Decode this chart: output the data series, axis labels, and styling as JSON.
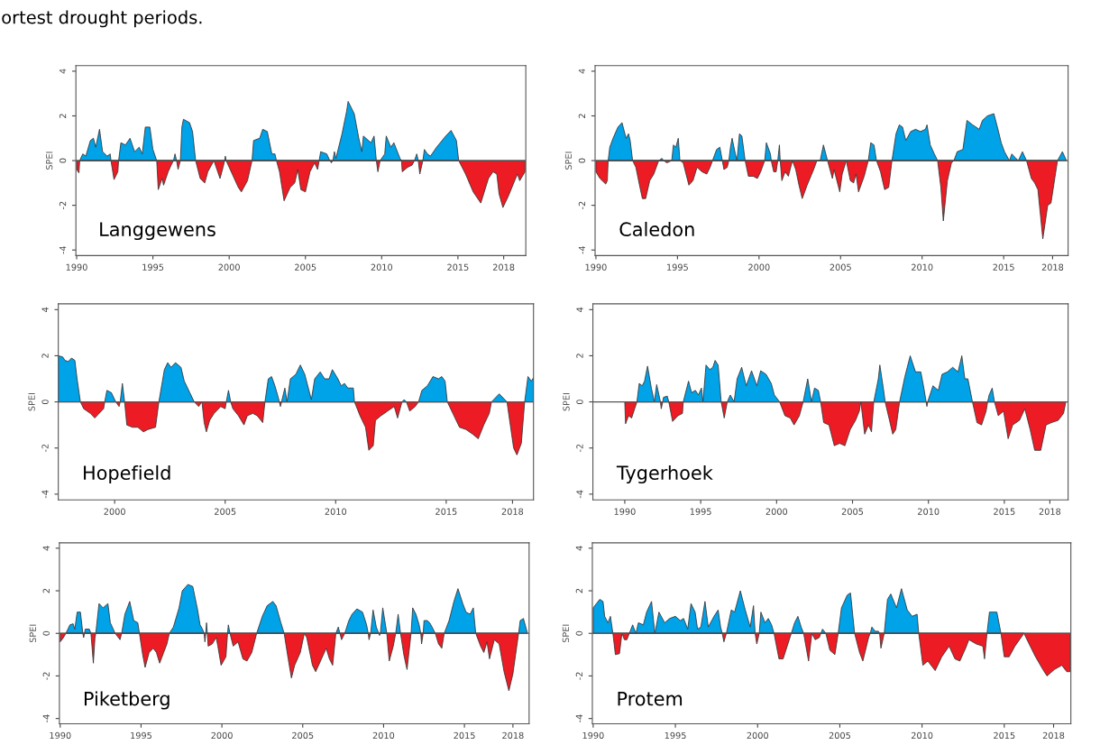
{
  "chart_data": [
    {
      "type": "area",
      "ylabel": "SPEI",
      "annotations": [
        "Langgewens",
        "ortest drought periods."
      ],
      "xlim": [
        1989.95,
        2019.45
      ],
      "xticks": [
        1990,
        1995,
        2000,
        2005,
        2010,
        2015,
        2018
      ],
      "ylim": [
        -4.25,
        4.25
      ],
      "yticks": [
        -4,
        -2,
        0,
        2,
        4
      ],
      "ref_lines": [
        {
          "axis": "y",
          "value": 0,
          "color": "#555555"
        }
      ],
      "series": [
        {
          "color": "#00a2e8",
          "x": [
            1990.2,
            1990.4,
            1990.6,
            1990.9,
            1991.1,
            1991.25,
            1991.5,
            1991.7,
            1992.0,
            1992.2,
            1992.25,
            1992.75,
            1992.9,
            1993.2,
            1993.5,
            1993.8,
            1994.1,
            1994.3,
            1994.5,
            1994.8,
            1995.0,
            1995.25,
            1996.35,
            1996.45,
            1996.55,
            1996.8,
            1996.9,
            1997.0,
            1997.4,
            1997.6,
            1997.8,
            1999.0,
            1999.7,
            1999.75,
            1999.8,
            2001.5,
            2001.6,
            2002.0,
            2002.2,
            2002.5,
            2002.8,
            2003.0,
            2003.1,
            2005.9,
            2006.0,
            2006.4,
            2006.6,
            2006.8,
            2006.9,
            2007.0,
            2007.4,
            2007.7,
            2007.8,
            2008.2,
            2008.5,
            2008.7,
            2008.8,
            2009.3,
            2009.5,
            2009.65,
            2009.9,
            2010.2,
            2010.3,
            2010.6,
            2010.8,
            2011.2,
            2011.3,
            2012.15,
            2012.3,
            2012.4,
            2012.7,
            2012.8,
            2013.0,
            2013.2,
            2013.6,
            2014.2,
            2014.55,
            2014.9,
            2015.05
          ],
          "values": [
            0,
            0.3,
            0.2,
            0.9,
            1.0,
            0.6,
            1.4,
            0.4,
            0.2,
            0.3,
            0,
            0,
            0.8,
            0.7,
            1.0,
            0.4,
            0.6,
            0.3,
            1.5,
            1.5,
            0.5,
            0,
            0,
            0.3,
            0,
            0,
            1.5,
            1.85,
            1.7,
            1.3,
            0,
            0,
            0,
            0.2,
            0,
            0,
            0.9,
            1.0,
            1.4,
            1.3,
            0.3,
            0.3,
            0,
            0,
            0.4,
            0.3,
            0,
            0,
            0.4,
            0.1,
            1.2,
            2.2,
            2.65,
            2.1,
            1.0,
            0.4,
            1.1,
            0.8,
            1.1,
            0,
            0,
            0.3,
            1.1,
            0.6,
            0.8,
            0.1,
            0,
            0,
            0.3,
            0,
            0,
            0.5,
            0.3,
            0.2,
            0.6,
            1.1,
            1.35,
            0.9,
            0
          ]
        },
        {
          "color": "#ed1c24",
          "x": [
            1990.0,
            1990.15,
            1990.2,
            1992.25,
            1992.45,
            1992.7,
            1992.75,
            1995.25,
            1995.35,
            1995.6,
            1995.7,
            1996.0,
            1996.2,
            1996.35,
            1996.55,
            1996.65,
            1996.8,
            1997.8,
            1998.1,
            1998.4,
            1998.6,
            1999.0,
            1999.4,
            1999.6,
            1999.7,
            1999.8,
            2000.2,
            2000.6,
            2000.8,
            2001.2,
            2001.5,
            2003.1,
            2003.3,
            2003.6,
            2004.0,
            2004.3,
            2004.5,
            2004.7,
            2005.0,
            2005.3,
            2005.6,
            2005.8,
            2005.9,
            2006.6,
            2006.7,
            2006.8,
            2009.65,
            2009.75,
            2009.9,
            2011.3,
            2011.35,
            2011.7,
            2012.0,
            2012.15,
            2012.4,
            2012.5,
            2012.7,
            2015.05,
            2015.5,
            2016.0,
            2016.5,
            2017.0,
            2017.3,
            2017.55,
            2017.7,
            2017.95,
            2018.3,
            2018.9,
            2019.05,
            2019.4
          ],
          "values": [
            -0.4,
            -0.55,
            0,
            0,
            -0.85,
            -0.5,
            0,
            0,
            -1.3,
            -0.8,
            -1.1,
            -0.5,
            -0.2,
            0,
            0,
            -0.4,
            0,
            0,
            -0.8,
            -1.0,
            -0.5,
            0,
            -0.8,
            -0.3,
            0,
            0,
            -0.6,
            -1.2,
            -1.4,
            -0.9,
            0,
            0,
            -0.5,
            -1.8,
            -1.2,
            -1.0,
            -0.4,
            -1.3,
            -1.4,
            -0.5,
            -0.1,
            -0.4,
            0,
            0,
            -0.1,
            0,
            0,
            -0.5,
            0,
            0,
            -0.5,
            -0.3,
            -0.2,
            0,
            0,
            -0.6,
            0,
            0,
            -0.6,
            -1.4,
            -1.9,
            -0.8,
            -0.5,
            -0.6,
            -1.5,
            -2.1,
            -1.6,
            -0.6,
            -0.9,
            -0.5
          ]
        }
      ]
    },
    {
      "type": "area",
      "ylabel": "SPEI",
      "annotations": [
        "Caledon"
      ],
      "xlim": [
        1989.95,
        2018.95
      ],
      "xticks": [
        1990,
        1995,
        2000,
        2005,
        2010,
        2015,
        2018
      ],
      "ylim": [
        -4.25,
        4.25
      ],
      "yticks": [
        -4,
        -2,
        0,
        2,
        4
      ],
      "ref_lines": [
        {
          "axis": "y",
          "value": 0,
          "color": "#555555"
        }
      ],
      "series": [
        {
          "color": "#00a2e8",
          "x": [
            1990.75,
            1990.85,
            1991.05,
            1991.35,
            1991.6,
            1991.85,
            1992.0,
            1992.1,
            1992.25,
            1993.85,
            1994.05,
            1994.15,
            1994.65,
            1994.75,
            1994.9,
            1995.05,
            1995.15,
            1997.15,
            1997.4,
            1997.6,
            1997.75,
            1998.15,
            1998.25,
            1998.35,
            1998.55,
            1998.65,
            1998.8,
            1998.95,
            1999.15,
            2000.35,
            2000.45,
            2000.7,
            2000.75,
            2001.15,
            2001.25,
            2001.3,
            2003.75,
            2003.95,
            2004.2,
            2006.7,
            2006.85,
            2007.05,
            2007.2,
            2008.15,
            2008.4,
            2008.6,
            2008.8,
            2009.0,
            2009.3,
            2009.6,
            2009.9,
            2010.2,
            2010.3,
            2010.5,
            2010.75,
            2010.95,
            2011.95,
            2012.15,
            2012.5,
            2012.75,
            2013.1,
            2013.5,
            2013.7,
            2014.0,
            2014.4,
            2014.65,
            2014.85,
            2015.05,
            2015.35,
            2015.5,
            2015.75,
            2015.9,
            2016.15,
            2016.4,
            2018.3,
            2018.6,
            2018.85
          ],
          "values": [
            0,
            0.6,
            1.0,
            1.5,
            1.7,
            1.0,
            1.2,
            0.9,
            0,
            0,
            0.1,
            0,
            0,
            0.7,
            0.6,
            1.0,
            0,
            0,
            0.5,
            0.6,
            0,
            0,
            0.6,
            1.0,
            0.3,
            0,
            1.2,
            1.1,
            0,
            0,
            0.8,
            0.3,
            0,
            0,
            0.7,
            0,
            0,
            0.7,
            0,
            0,
            0.8,
            0.7,
            0,
            0,
            1.2,
            1.6,
            1.5,
            0.9,
            1.3,
            1.4,
            1.3,
            1.4,
            1.6,
            0.7,
            0.3,
            0,
            0,
            0.4,
            0.5,
            1.8,
            1.6,
            1.4,
            1.8,
            2.0,
            2.1,
            1.4,
            0.8,
            0.4,
            0,
            0.3,
            0.1,
            0,
            0.4,
            0,
            0,
            0.4,
            0
          ]
        },
        {
          "color": "#ed1c24",
          "x": [
            1990.0,
            1990.25,
            1990.6,
            1990.7,
            1990.75,
            1992.25,
            1992.45,
            1992.7,
            1992.85,
            1993.05,
            1993.3,
            1993.55,
            1993.75,
            1993.85,
            1994.15,
            1994.35,
            1994.65,
            1995.15,
            1995.35,
            1995.7,
            1995.95,
            1996.2,
            1996.5,
            1996.8,
            1997.0,
            1997.15,
            1997.75,
            1997.85,
            1998.05,
            1998.15,
            1999.15,
            1999.35,
            1999.65,
            1999.9,
            2000.1,
            2000.35,
            2000.75,
            2000.9,
            2001.05,
            2001.15,
            2001.3,
            2001.4,
            2001.6,
            2001.8,
            2002.05,
            2002.25,
            2002.45,
            2002.65,
            2002.95,
            2003.35,
            2003.55,
            2004.2,
            2004.5,
            2004.6,
            2004.95,
            2005.1,
            2005.35,
            2005.6,
            2005.8,
            2005.95,
            2006.1,
            2006.45,
            2006.7,
            2007.2,
            2007.45,
            2007.7,
            2007.95,
            2008.15,
            2010.95,
            2011.15,
            2011.3,
            2011.55,
            2011.8,
            2011.95,
            2016.4,
            2016.7,
            2016.9,
            2017.1,
            2017.4,
            2017.7,
            2017.9,
            2018.3
          ],
          "values": [
            -0.5,
            -0.8,
            -1.05,
            -0.9,
            0,
            0,
            -0.3,
            -1.2,
            -1.7,
            -1.7,
            -0.9,
            -0.6,
            -0.2,
            0,
            0,
            -0.1,
            0,
            0,
            -0.1,
            -1.1,
            -0.9,
            -0.3,
            -0.5,
            -0.6,
            -0.3,
            0,
            0,
            -0.4,
            -0.3,
            0,
            0,
            -0.7,
            -0.7,
            -0.8,
            -0.5,
            0,
            0,
            -0.5,
            -0.5,
            0,
            0,
            -0.9,
            -0.5,
            -0.7,
            0,
            -0.4,
            -1.1,
            -1.7,
            -1.1,
            -0.4,
            0,
            0,
            -0.8,
            -0.4,
            -1.4,
            -0.6,
            0,
            -0.9,
            -1.0,
            -0.6,
            -1.4,
            -0.7,
            0,
            0,
            -0.5,
            -1.3,
            -1.2,
            0,
            0,
            -1.2,
            -2.7,
            -0.9,
            -0.1,
            0,
            0,
            -0.8,
            -1.0,
            -1.3,
            -3.5,
            -2.0,
            -1.9,
            0
          ]
        }
      ]
    },
    {
      "type": "area",
      "ylabel": "SPEI",
      "annotations": [
        "Hopefield"
      ],
      "xlim": [
        1997.45,
        2018.95
      ],
      "xticks": [
        2000,
        2005,
        2010,
        2015,
        2018
      ],
      "ylim": [
        -4.25,
        4.25
      ],
      "yticks": [
        -4,
        -2,
        0,
        2,
        4
      ],
      "ref_lines": [
        {
          "axis": "y",
          "value": 0,
          "color": "#555555"
        }
      ],
      "series": [
        {
          "color": "#00a2e8",
          "x": [
            1997.45,
            1997.65,
            1997.75,
            1997.9,
            1998.05,
            1998.2,
            1998.3,
            1998.45,
            1999.55,
            1999.65,
            1999.85,
            2000.05,
            2000.25,
            2000.35,
            2000.45,
            2002.0,
            2002.25,
            2002.4,
            2002.55,
            2002.75,
            2003.0,
            2003.15,
            2003.4,
            2003.6,
            2003.95,
            2005.05,
            2005.15,
            2005.25,
            2006.8,
            2006.95,
            2007.1,
            2007.25,
            2007.4,
            2007.45,
            2007.55,
            2007.7,
            2007.8,
            2007.95,
            2008.2,
            2008.4,
            2008.6,
            2008.9,
            2009.05,
            2009.3,
            2009.5,
            2009.7,
            2009.85,
            2010.1,
            2010.25,
            2010.4,
            2010.55,
            2010.8,
            2010.85,
            2013.0,
            2013.1,
            2013.2,
            2013.75,
            2013.9,
            2014.15,
            2014.4,
            2014.65,
            2014.8,
            2014.95,
            2015.05,
            2017.05,
            2017.15,
            2017.4,
            2017.65,
            2017.75,
            2018.55,
            2018.7,
            2018.85,
            2018.95
          ],
          "values": [
            2.0,
            1.95,
            1.8,
            1.75,
            1.9,
            1.8,
            1.0,
            0,
            0,
            0.5,
            0.4,
            0,
            0,
            0.8,
            0,
            0,
            1.4,
            1.7,
            1.5,
            1.7,
            1.5,
            0.9,
            0.4,
            0,
            0,
            0,
            0.5,
            0,
            0,
            1.0,
            1.1,
            0.7,
            0.2,
            0,
            0,
            0.6,
            0,
            1.0,
            1.2,
            1.6,
            1.2,
            0.1,
            1.0,
            1.3,
            1.0,
            1.0,
            1.4,
            1.0,
            0.7,
            0.8,
            0.6,
            0.6,
            0,
            0,
            0.1,
            0,
            0,
            0.5,
            0.7,
            1.1,
            1.0,
            1.1,
            0.9,
            0,
            0,
            0.1,
            0.35,
            0.1,
            0,
            0,
            1.1,
            0.9,
            1.05
          ]
        },
        {
          "color": "#ed1c24",
          "x": [
            1998.45,
            1998.6,
            1998.9,
            1999.1,
            1999.3,
            1999.5,
            1999.55,
            2000.05,
            2000.2,
            2000.25,
            2000.45,
            2000.55,
            2000.8,
            2001.05,
            2001.3,
            2001.5,
            2001.85,
            2002.0,
            2003.6,
            2003.8,
            2003.95,
            2004.05,
            2004.15,
            2004.3,
            2004.5,
            2004.8,
            2005.0,
            2005.05,
            2005.25,
            2005.35,
            2005.6,
            2005.85,
            2006.0,
            2006.25,
            2006.45,
            2006.7,
            2006.8,
            2007.45,
            2007.5,
            2007.55,
            2010.85,
            2011.1,
            2011.35,
            2011.5,
            2011.7,
            2011.8,
            2012.05,
            2012.35,
            2012.65,
            2012.8,
            2013.0,
            2013.2,
            2013.35,
            2013.6,
            2013.75,
            2015.05,
            2015.3,
            2015.6,
            2015.9,
            2016.2,
            2016.45,
            2016.7,
            2016.95,
            2017.05,
            2017.75,
            2017.9,
            2018.05,
            2018.2,
            2018.4,
            2018.55
          ],
          "values": [
            0,
            -0.3,
            -0.5,
            -0.7,
            -0.5,
            -0.3,
            0,
            0,
            -0.2,
            0,
            0,
            -1.0,
            -1.1,
            -1.1,
            -1.3,
            -1.2,
            -1.1,
            0,
            0,
            -0.2,
            0,
            -0.9,
            -1.3,
            -0.8,
            -0.5,
            -0.2,
            -0.3,
            0,
            0,
            -0.3,
            -0.6,
            -1.0,
            -0.6,
            -0.5,
            -0.6,
            -0.9,
            0,
            0,
            -0.2,
            0,
            0,
            -0.6,
            -1.1,
            -2.1,
            -1.9,
            -0.8,
            -0.6,
            -0.4,
            -0.2,
            -0.7,
            0,
            0,
            -0.4,
            -0.2,
            0,
            0,
            -0.5,
            -1.1,
            -1.2,
            -1.4,
            -1.6,
            -1.0,
            -0.5,
            0,
            0,
            -1.0,
            -2.0,
            -2.3,
            -1.8,
            0
          ]
        }
      ]
    },
    {
      "type": "area",
      "ylabel": "SPEI",
      "annotations": [
        "Tygerhoek"
      ],
      "xlim": [
        1987.9,
        2019.2
      ],
      "xticks": [
        1990,
        1995,
        2000,
        2005,
        2010,
        2015,
        2018
      ],
      "ylim": [
        -4.25,
        4.25
      ],
      "yticks": [
        -4,
        -2,
        0,
        2,
        4
      ],
      "ref_lines": [
        {
          "axis": "y",
          "value": 0,
          "color": "#555555"
        }
      ],
      "series": [
        {
          "color": "#00a2e8",
          "x": [
            1990.0,
            1990.8,
            1990.95,
            1991.15,
            1991.3,
            1991.5,
            1991.75,
            1991.95,
            1992.1,
            1992.25,
            1992.35,
            1992.5,
            1992.55,
            1992.8,
            1992.9,
            1993.85,
            1994.2,
            1994.4,
            1994.65,
            1994.85,
            1995.05,
            1995.15,
            1995.35,
            1995.6,
            1995.8,
            1995.95,
            1996.15,
            1996.35,
            1996.75,
            1996.95,
            1997.2,
            1997.4,
            1997.7,
            1998.0,
            1998.35,
            1998.7,
            1998.95,
            1999.3,
            1999.65,
            1999.85,
            2000.2,
            2001.75,
            2002.05,
            2002.3,
            2002.5,
            2002.75,
            2002.9,
            2005.55,
            2006.4,
            2006.7,
            2006.8,
            2007.05,
            2007.15,
            2008.1,
            2008.45,
            2008.8,
            2009.15,
            2009.5,
            2009.7,
            2009.85,
            2009.95,
            2010.3,
            2010.65,
            2010.9,
            2011.25,
            2011.6,
            2011.95,
            2012.2,
            2012.4,
            2012.6,
            2012.9,
            2013.9,
            2014.0,
            2014.2,
            2014.35,
            2019.05
          ],
          "values": [
            0,
            0,
            0.8,
            0.7,
            0.9,
            1.55,
            0.6,
            0,
            0.75,
            0.3,
            0,
            0,
            0.2,
            0.25,
            0,
            0,
            0.9,
            0.4,
            0.5,
            0.3,
            0.6,
            0,
            1.6,
            1.4,
            1.5,
            1.8,
            1.6,
            0,
            0,
            0.3,
            0,
            1.0,
            1.5,
            0.7,
            1.35,
            0.7,
            1.35,
            1.2,
            0.8,
            0.3,
            0,
            0,
            1.0,
            0,
            0.6,
            0.5,
            0,
            0,
            0,
            1.0,
            1.6,
            0.5,
            0,
            0,
            1.1,
            2.0,
            1.3,
            1.3,
            0.6,
            0,
            0,
            0.7,
            0.5,
            1.2,
            1.3,
            1.5,
            1.3,
            2.0,
            1.0,
            1.0,
            0,
            0,
            0.3,
            0.6,
            0,
            0
          ]
        },
        {
          "color": "#ed1c24",
          "x": [
            1990.0,
            1990.05,
            1990.25,
            1990.45,
            1990.65,
            1990.8,
            1992.35,
            1992.4,
            1992.5,
            1992.9,
            1993.15,
            1993.5,
            1993.8,
            1993.85,
            1996.35,
            1996.55,
            1996.75,
            2000.2,
            2000.55,
            2000.9,
            2001.15,
            2001.5,
            2001.75,
            2002.9,
            2003.1,
            2003.45,
            2003.8,
            2004.15,
            2004.5,
            2004.85,
            2005.2,
            2005.45,
            2005.55,
            2005.8,
            2006.05,
            2006.25,
            2006.4,
            2007.15,
            2007.4,
            2007.65,
            2007.85,
            2008.1,
            2009.85,
            2009.9,
            2009.95,
            2012.9,
            2013.2,
            2013.5,
            2013.8,
            2013.9,
            2014.35,
            2014.6,
            2014.95,
            2015.25,
            2015.55,
            2016.0,
            2016.35,
            2016.7,
            2017.0,
            2017.4,
            2017.75,
            2018.1,
            2018.55,
            2018.9,
            2019.05
          ],
          "values": [
            0,
            -0.95,
            -0.6,
            -0.7,
            -0.3,
            0,
            0,
            -0.3,
            0,
            0,
            -0.85,
            -0.6,
            -0.5,
            0,
            0,
            -0.7,
            0,
            0,
            -0.6,
            -0.7,
            -1.0,
            -0.6,
            0,
            0,
            -0.9,
            -1.0,
            -1.9,
            -1.8,
            -1.9,
            -1.2,
            -0.8,
            -0.4,
            0,
            -1.4,
            -1.0,
            -1.3,
            0,
            0,
            -0.7,
            -1.4,
            -1.2,
            0,
            0,
            -0.2,
            0,
            0,
            -0.9,
            -1.0,
            -0.4,
            0,
            0,
            -0.6,
            -0.4,
            -1.6,
            -1.0,
            -0.8,
            -0.3,
            -1.2,
            -2.1,
            -2.1,
            -1.0,
            -0.9,
            -0.8,
            -0.5,
            0
          ]
        }
      ]
    },
    {
      "type": "area",
      "ylabel": "SPEI",
      "annotations": [
        "Piketberg"
      ],
      "xlim": [
        1989.95,
        2019.0
      ],
      "xticks": [
        1990,
        1995,
        2000,
        2005,
        2010,
        2015,
        2018
      ],
      "ylim": [
        -4.25,
        4.25
      ],
      "yticks": [
        -4,
        -2,
        0,
        2,
        4
      ],
      "ref_lines": [
        {
          "axis": "y",
          "value": 0,
          "color": "#555555"
        }
      ],
      "series": [
        {
          "color": "#00a2e8",
          "x": [
            1990.35,
            1990.6,
            1990.8,
            1990.9,
            1991.05,
            1991.25,
            1991.4,
            1991.5,
            1991.55,
            1991.8,
            1991.9,
            1992.2,
            1992.4,
            1992.65,
            1992.95,
            1993.1,
            1993.4,
            1993.8,
            1994.0,
            1994.3,
            1994.55,
            1994.8,
            1994.9,
            1996.75,
            1997.0,
            1997.35,
            1997.55,
            1997.9,
            1998.2,
            1998.5,
            1998.65,
            1998.8,
            1998.9,
            1999.0,
            1999.05,
            1999.1,
            2000.35,
            2000.4,
            2000.5,
            2002.15,
            2002.5,
            2002.8,
            2003.15,
            2003.35,
            2003.65,
            2003.85,
            2005.1,
            2007.05,
            2007.2,
            2007.3,
            2007.6,
            2007.85,
            2008.05,
            2008.35,
            2008.7,
            2008.95,
            2009.05,
            2009.2,
            2009.35,
            2009.55,
            2009.7,
            2009.8,
            2009.95,
            2010.2,
            2010.75,
            2010.9,
            2011.05,
            2011.7,
            2011.8,
            2012.0,
            2012.2,
            2012.3,
            2012.45,
            2012.5,
            2012.7,
            2012.85,
            2013.0,
            2013.2,
            2013.75,
            2014.05,
            2014.35,
            2014.6,
            2014.9,
            2015.1,
            2015.35,
            2015.55,
            2015.7,
            2018.35,
            2018.45,
            2018.65,
            2018.9
          ],
          "values": [
            0,
            0.4,
            0.45,
            0.2,
            1.0,
            1.0,
            0,
            0,
            0.2,
            0.2,
            0,
            0,
            1.4,
            1.2,
            1.4,
            0.5,
            0,
            0,
            0.9,
            1.5,
            0.6,
            0.5,
            0,
            0,
            0.3,
            1.2,
            2.0,
            2.3,
            2.2,
            1.1,
            0.4,
            0.2,
            0,
            0,
            0.5,
            0,
            0,
            0.4,
            0,
            0,
            0.8,
            1.3,
            1.5,
            1.3,
            0.5,
            0,
            0,
            0,
            0.3,
            0,
            0,
            0.6,
            0.9,
            1.15,
            1.0,
            0.4,
            0,
            0,
            1.1,
            0.3,
            0,
            0,
            1.2,
            0,
            0,
            0.9,
            0,
            0,
            1.2,
            0.9,
            0.4,
            0,
            0,
            0.6,
            0.6,
            0.5,
            0.3,
            0,
            0,
            0.6,
            1.5,
            2.1,
            1.4,
            1.0,
            0.9,
            1.2,
            0,
            0,
            0.6,
            0.7,
            0
          ]
        },
        {
          "color": "#ed1c24",
          "x": [
            1990.0,
            1990.2,
            1990.35,
            1991.4,
            1991.45,
            1991.5,
            1991.9,
            1992.05,
            1992.15,
            1992.2,
            1993.4,
            1993.7,
            1993.8,
            1994.9,
            1995.1,
            1995.25,
            1995.5,
            1995.75,
            1995.95,
            1996.15,
            1996.4,
            1996.6,
            1996.75,
            1998.9,
            1998.95,
            1999.0,
            1999.1,
            1999.15,
            1999.4,
            1999.65,
            1999.75,
            1999.95,
            2000.25,
            2000.35,
            2000.5,
            2000.7,
            2001.0,
            2001.3,
            2001.55,
            2001.85,
            2002.15,
            2003.85,
            2004.1,
            2004.3,
            2004.5,
            2004.85,
            2005.1,
            2005.25,
            2005.6,
            2005.8,
            2006.1,
            2006.45,
            2006.65,
            2006.85,
            2007.05,
            2007.3,
            2007.4,
            2007.6,
            2009.05,
            2009.1,
            2009.2,
            2009.7,
            2009.75,
            2009.8,
            2010.2,
            2010.35,
            2010.6,
            2010.75,
            2011.05,
            2011.25,
            2011.45,
            2011.7,
            2012.3,
            2012.35,
            2012.45,
            2013.2,
            2013.4,
            2013.6,
            2013.75,
            2015.7,
            2016.0,
            2016.2,
            2016.4,
            2016.55,
            2016.85,
            2017.15,
            2017.45,
            2017.75,
            2018.0,
            2018.35
          ],
          "values": [
            -0.4,
            -0.2,
            0,
            0,
            -0.2,
            0,
            0,
            -1.4,
            -0.2,
            0,
            0,
            -0.3,
            0,
            0,
            -1.0,
            -1.6,
            -0.9,
            -0.7,
            -0.9,
            -1.4,
            -0.9,
            -0.5,
            0,
            0,
            -0.4,
            0,
            0,
            -0.6,
            -0.5,
            -0.2,
            -0.6,
            -1.5,
            -1.1,
            0,
            0,
            -0.6,
            -0.4,
            -1.2,
            -1.3,
            -0.9,
            0,
            0,
            -1.2,
            -2.1,
            -1.5,
            -0.9,
            0,
            -0.2,
            -1.5,
            -1.8,
            -1.3,
            -0.7,
            -1.2,
            -1.5,
            0,
            0,
            -0.3,
            0,
            0,
            -0.3,
            0,
            0,
            -0.1,
            0,
            0,
            -1.3,
            -0.6,
            0,
            0,
            -1.0,
            -1.7,
            0,
            0,
            -0.5,
            0,
            0,
            -0.5,
            -0.7,
            0,
            0,
            -0.6,
            -0.9,
            -0.4,
            -1.2,
            -0.3,
            -0.5,
            -1.8,
            -2.7,
            -1.9,
            0
          ]
        }
      ]
    },
    {
      "type": "area",
      "ylabel": "SPEI",
      "annotations": [
        "Protem"
      ],
      "xlim": [
        1989.95,
        2019.05
      ],
      "xticks": [
        1990,
        1995,
        2000,
        2005,
        2010,
        2015,
        2018
      ],
      "ylim": [
        -4.25,
        4.25
      ],
      "yticks": [
        -4,
        -2,
        0,
        2,
        4
      ],
      "ref_lines": [
        {
          "axis": "y",
          "value": 0,
          "color": "#555555"
        }
      ],
      "series": [
        {
          "color": "#00a2e8",
          "x": [
            1990.0,
            1990.2,
            1990.4,
            1990.6,
            1990.7,
            1990.9,
            1991.05,
            1991.2,
            1991.75,
            1992.2,
            1992.4,
            1992.6,
            1992.75,
            1993.05,
            1993.25,
            1993.55,
            1993.75,
            1994.0,
            1994.35,
            1994.65,
            1995.0,
            1995.3,
            1995.5,
            1995.75,
            1995.95,
            1996.2,
            1996.35,
            1996.55,
            1996.8,
            1997.0,
            1997.35,
            1997.6,
            1997.75,
            1997.85,
            1998.1,
            1998.4,
            1998.6,
            1998.95,
            1999.25,
            1999.55,
            1999.75,
            1999.85,
            2000.1,
            2000.2,
            2000.45,
            2000.65,
            2000.85,
            2001.0,
            2002.05,
            2002.25,
            2002.45,
            2002.65,
            2002.8,
            2003.3,
            2003.85,
            2003.95,
            2004.15,
            2004.9,
            2005.1,
            2005.45,
            2005.65,
            2005.9,
            2006.85,
            2006.95,
            2007.15,
            2007.35,
            2007.42,
            2007.7,
            2007.9,
            2008.1,
            2008.45,
            2008.75,
            2009.1,
            2009.4,
            2009.7,
            2009.8,
            2013.95,
            2014.1,
            2014.55,
            2014.8,
            2016.2
          ],
          "values": [
            1.2,
            1.4,
            1.6,
            1.5,
            0.8,
            0.5,
            0.8,
            0,
            0,
            0,
            0.4,
            0,
            0.5,
            0.4,
            1.0,
            1.5,
            0,
            1.0,
            0.5,
            0.7,
            0.8,
            0.6,
            0.7,
            0.2,
            1.4,
            1.0,
            0.2,
            0.3,
            1.5,
            0.3,
            0.8,
            1.1,
            0.3,
            0,
            0,
            1.1,
            1.0,
            2.0,
            1.1,
            0.3,
            1.3,
            0,
            0,
            1.0,
            0.5,
            0.7,
            0.4,
            0,
            0,
            0.5,
            0.8,
            0.3,
            0,
            0,
            0,
            0.2,
            0,
            0,
            1.2,
            1.8,
            1.9,
            0,
            0,
            0.3,
            0.1,
            0.1,
            0,
            0,
            1.6,
            1.85,
            1.2,
            2.1,
            1.1,
            0.8,
            0.9,
            0,
            0,
            1.0,
            1.0,
            0,
            0
          ]
        },
        {
          "color": "#ed1c24",
          "x": [
            1991.2,
            1991.35,
            1991.6,
            1991.75,
            1991.9,
            1992.05,
            1992.2,
            1997.85,
            1997.95,
            1998.1,
            1999.85,
            1999.95,
            2000.1,
            2001.0,
            2001.3,
            2001.55,
            2001.8,
            2002.05,
            2002.8,
            2003.1,
            2003.3,
            2003.5,
            2003.75,
            2003.85,
            2004.15,
            2004.4,
            2004.7,
            2004.9,
            2005.9,
            2006.2,
            2006.4,
            2006.75,
            2006.85,
            2007.42,
            2007.5,
            2007.7,
            2009.8,
            2010.05,
            2010.35,
            2010.8,
            2011.2,
            2011.65,
            2012.0,
            2012.3,
            2012.65,
            2012.85,
            2013.3,
            2013.7,
            2013.8,
            2013.95,
            2014.8,
            2015.0,
            2015.3,
            2015.65,
            2016.2,
            2016.45,
            2016.9,
            2017.35,
            2017.6,
            2018.05,
            2018.5,
            2018.8,
            2019.0
          ],
          "values": [
            0,
            -1.0,
            -0.95,
            0,
            -0.3,
            -0.3,
            0,
            0,
            -0.4,
            0,
            0,
            -0.5,
            0,
            0,
            -1.2,
            -1.2,
            -0.6,
            0,
            0,
            -1.3,
            0,
            -0.3,
            -0.2,
            0,
            0,
            -0.8,
            -1.0,
            0,
            0,
            -0.9,
            -1.3,
            -0.2,
            0,
            0,
            -0.7,
            0,
            0,
            -1.5,
            -1.3,
            -1.75,
            -1.1,
            -0.6,
            -1.2,
            -1.3,
            -0.7,
            -0.3,
            -0.5,
            -0.6,
            -1.2,
            0,
            0,
            -1.1,
            -1.1,
            -0.6,
            0,
            -0.4,
            -1.1,
            -1.7,
            -2.0,
            -1.7,
            -1.5,
            -1.8,
            -1.8
          ]
        }
      ]
    }
  ]
}
